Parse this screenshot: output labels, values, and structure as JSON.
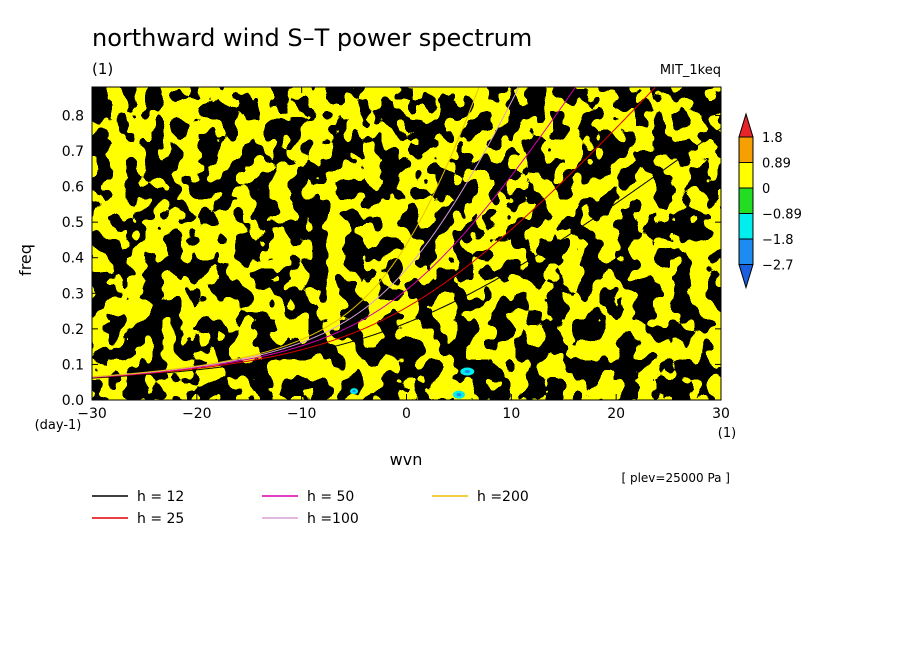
{
  "chart_data": {
    "type": "heatmap",
    "title": "northward wind S–T power spectrum",
    "subtitle_left": "(1)",
    "subtitle_right": "MIT_1keq",
    "xlabel": "wvn",
    "ylabel": "freq",
    "x_unit": "(1)",
    "y_unit": "(day-1)",
    "xlim": [
      -30,
      30
    ],
    "ylim": [
      0,
      0.88
    ],
    "x_ticks": [
      -30,
      -20,
      -10,
      0,
      10,
      20,
      30
    ],
    "x_tick_labels": [
      "−30",
      "−20",
      "−10",
      "0",
      "10",
      "20",
      "30"
    ],
    "y_ticks": [
      0,
      0.1,
      0.2,
      0.3,
      0.4,
      0.5,
      0.6,
      0.7,
      0.8
    ],
    "y_tick_labels": [
      "0.0",
      "0.1",
      "0.2",
      "0.3",
      "0.4",
      "0.5",
      "0.6",
      "0.7",
      "0.8"
    ],
    "level_note": "[ plev=25000 Pa ]",
    "colorbar": {
      "labels": [
        "1.8",
        "0.89",
        "0",
        "−0.89",
        "−1.8",
        "−2.7"
      ],
      "colors": [
        "#e8242a",
        "#f5a000",
        "#ffff00",
        "#22dd22",
        "#00eeee",
        "#1c8cf0",
        "#1a5fe0"
      ]
    },
    "field_colors": {
      "positive": "#ffff00",
      "negative": "#22dd22",
      "strong_negative": "#00eeee",
      "strongest_negative": "#1c8cf0"
    },
    "series": [
      {
        "name": "h = 12",
        "color": "#000000",
        "h": 12
      },
      {
        "name": "h = 25",
        "color": "#e00000",
        "h": 25
      },
      {
        "name": "h = 50",
        "color": "#d800b0",
        "h": 50
      },
      {
        "name": "h =100",
        "color": "#d8a0d8",
        "h": 100
      },
      {
        "name": "h =200",
        "color": "#e8c000",
        "h": 200
      }
    ]
  }
}
